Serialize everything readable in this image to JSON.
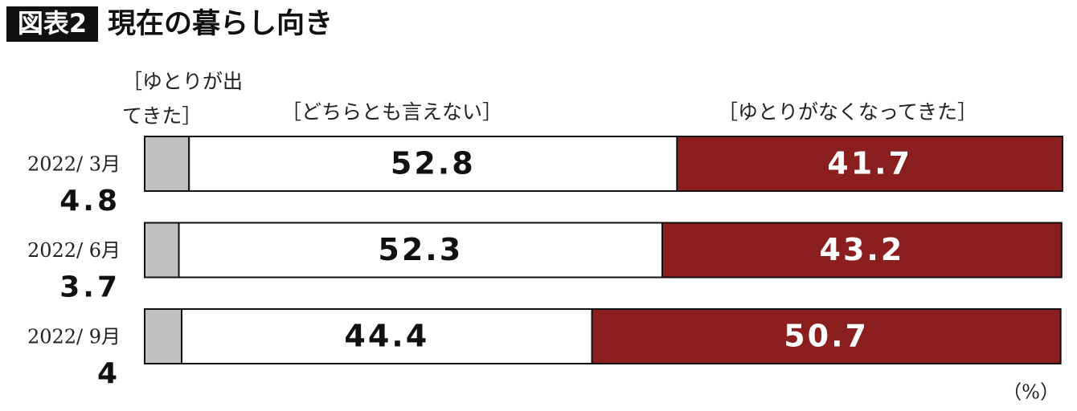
{
  "chart_data": {
    "type": "stacked-bar-horizontal",
    "badge": "図表2",
    "title": "現在の暮らし向き",
    "unit": "（%）",
    "categories": [
      "2022/ 3月",
      "2022/ 6月",
      "2022/ 9月"
    ],
    "xlim": [
      0,
      100
    ],
    "series": [
      {
        "name": "［ゆとりが出てきた］",
        "color": "#c0c0c0",
        "values": [
          4.8,
          3.7,
          4.0
        ]
      },
      {
        "name": "［どちらとも言えない］",
        "color": "#ffffff",
        "values": [
          52.8,
          52.3,
          44.4
        ]
      },
      {
        "name": "［ゆとりがなくなってきた］",
        "color": "#8b1f1f",
        "values": [
          41.7,
          43.2,
          50.7
        ]
      }
    ]
  }
}
